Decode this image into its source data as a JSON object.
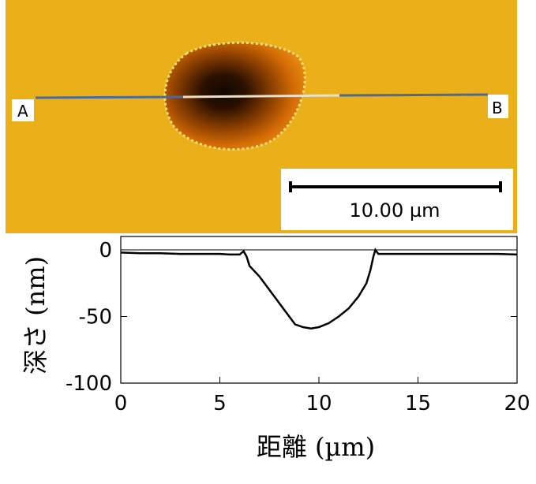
{
  "afm_image": {
    "line_start_label": "A",
    "line_end_label": "B",
    "scale_bar_label": "10.00 µm",
    "colors": {
      "background": "#eeb21b",
      "pit_dark": "#1a0a00",
      "pit_rim": "#f7e07a",
      "profile_line": "#4a6a9a"
    }
  },
  "chart_data": {
    "type": "line",
    "xlabel": "距離 (µm)",
    "ylabel": "深さ (nm)",
    "xlim": [
      0,
      20
    ],
    "ylim": [
      -100,
      5
    ],
    "xticks": [
      "0",
      "5",
      "10",
      "15",
      "20"
    ],
    "yticks": [
      "0",
      "-50",
      "-100"
    ],
    "grid": false,
    "series": [
      {
        "x": [
          0,
          1,
          2,
          3,
          4,
          5,
          5.5,
          6,
          6.2,
          6.35,
          6.5,
          7,
          7.5,
          8,
          8.5,
          8.8,
          9.2,
          9.6,
          10,
          10.5,
          11,
          11.5,
          12,
          12.4,
          12.6,
          12.75,
          12.85,
          13,
          14,
          15,
          16,
          17,
          18,
          19,
          20
        ],
        "y": [
          -2,
          -2.5,
          -2.5,
          -3,
          -3,
          -3,
          -3.5,
          -3.5,
          -1,
          -5,
          -12,
          -20,
          -30,
          -40,
          -50,
          -56,
          -58,
          -59,
          -58,
          -55,
          -50,
          -44,
          -35,
          -25,
          -15,
          -5,
          0,
          -3,
          -3,
          -3,
          -3,
          -3,
          -3,
          -3,
          -3.5
        ]
      }
    ]
  }
}
